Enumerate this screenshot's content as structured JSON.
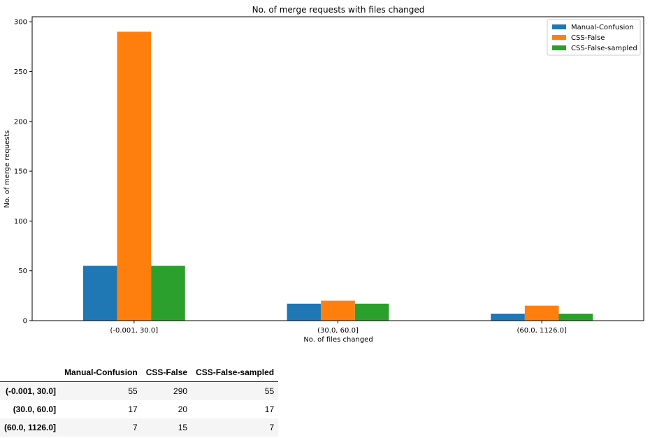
{
  "chart_data": {
    "type": "bar",
    "title": "No. of merge requests with files changed",
    "xlabel": "No. of files changed",
    "ylabel": "No. of merge requests",
    "categories": [
      "(-0.001, 30.0]",
      "(30.0, 60.0]",
      "(60.0, 1126.0]"
    ],
    "ylim": [
      0,
      305
    ],
    "yticks": [
      0,
      50,
      100,
      150,
      200,
      250,
      300
    ],
    "legend_position": "top-right",
    "grid": false,
    "series": [
      {
        "name": "Manual-Confusion",
        "color": "#1f77b4",
        "values": [
          55,
          17,
          7
        ]
      },
      {
        "name": "CSS-False",
        "color": "#ff7f0e",
        "values": [
          290,
          20,
          15
        ]
      },
      {
        "name": "CSS-False-sampled",
        "color": "#2ca02c",
        "values": [
          55,
          17,
          7
        ]
      }
    ]
  },
  "table": {
    "headers": [
      "",
      "Manual-Confusion",
      "CSS-False",
      "CSS-False-sampled"
    ],
    "rows": [
      {
        "label": "(-0.001, 30.0]",
        "cells": [
          "55",
          "290",
          "55"
        ]
      },
      {
        "label": "(30.0, 60.0]",
        "cells": [
          "17",
          "20",
          "17"
        ]
      },
      {
        "label": "(60.0, 1126.0]",
        "cells": [
          "7",
          "15",
          "7"
        ]
      }
    ]
  }
}
